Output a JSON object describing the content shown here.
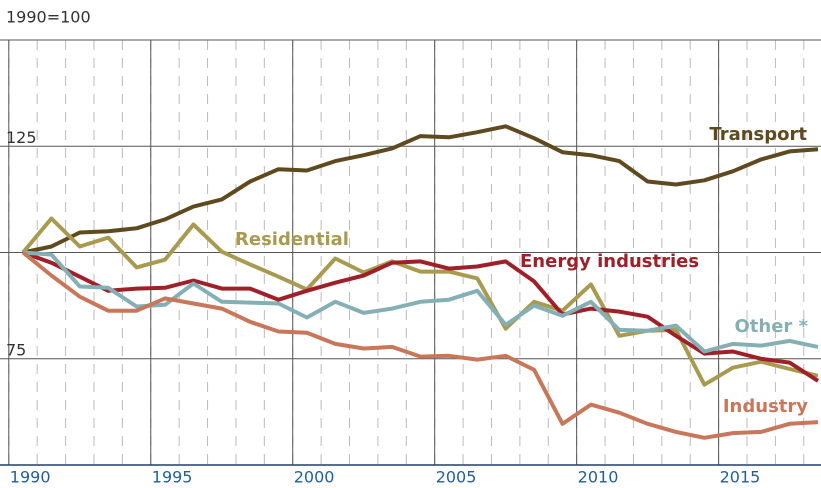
{
  "chart_data": {
    "type": "line",
    "ylabel": "1990=100",
    "x": [
      1990,
      1991,
      1992,
      1993,
      1994,
      1995,
      1996,
      1997,
      1998,
      1999,
      2000,
      2001,
      2002,
      2003,
      2004,
      2005,
      2006,
      2007,
      2008,
      2009,
      2010,
      2011,
      2012,
      2013,
      2014,
      2015,
      2016,
      2017,
      2018
    ],
    "xlim": [
      1990,
      2018
    ],
    "xticks": [
      1990,
      1995,
      2000,
      2005,
      2010,
      2015
    ],
    "ylim": [
      50,
      150
    ],
    "yticks": [
      75,
      125
    ],
    "ygrid": [
      50,
      75,
      100,
      125,
      150
    ],
    "series": [
      {
        "name": "Transport",
        "color": "#5e4a1e",
        "values": [
          100,
          101.4,
          104.7,
          105,
          105.7,
          107.8,
          110.8,
          112.5,
          116.7,
          119.6,
          119.3,
          121.5,
          122.9,
          124.5,
          127.4,
          127.1,
          128.3,
          129.7,
          126.9,
          123.6,
          122.9,
          121.5,
          116.7,
          116,
          117,
          119.1,
          121.9,
          123.8,
          124.3
        ]
      },
      {
        "name": "Residential",
        "color": "#a89b50",
        "values": [
          100,
          108,
          101.4,
          103.5,
          96.5,
          98.3,
          106.6,
          100.2,
          97.2,
          94.3,
          91.3,
          98.6,
          95.3,
          97.9,
          95.5,
          95.5,
          93.9,
          82.1,
          88.4,
          86.3,
          92.5,
          80.4,
          81.6,
          81.8,
          68.9,
          72.9,
          74.3,
          72.6,
          71
        ]
      },
      {
        "name": "Energy industries",
        "color": "#a0202a",
        "values": [
          100,
          97.6,
          94.3,
          91,
          91.5,
          91.7,
          93.4,
          91.5,
          91.5,
          88.9,
          91,
          92.9,
          94.6,
          97.6,
          97.9,
          96.2,
          96.7,
          97.9,
          93.2,
          85.4,
          86.8,
          86.1,
          84.9,
          80.4,
          76.2,
          76.7,
          75,
          74.1,
          69.8
        ]
      },
      {
        "name": "Other *",
        "color": "#84b0b5",
        "values": [
          100,
          99.5,
          92,
          91.7,
          87.3,
          87.7,
          92.7,
          88.4,
          88.2,
          88,
          84.7,
          88.4,
          85.8,
          86.8,
          88.4,
          88.9,
          91,
          83,
          87.5,
          85.1,
          88.4,
          81.8,
          81.6,
          82.8,
          76.7,
          78.5,
          78.1,
          79.2,
          77.8
        ]
      },
      {
        "name": "Industry",
        "color": "#c8775a",
        "values": [
          100,
          94.6,
          89.6,
          86.3,
          86.3,
          89.2,
          88,
          86.8,
          83.7,
          81.4,
          81.1,
          78.5,
          77.4,
          77.8,
          75.5,
          75.7,
          74.8,
          75.7,
          72.4,
          59.7,
          64.2,
          62.3,
          59.7,
          57.8,
          56.4,
          57.5,
          57.8,
          59.7,
          60.1
        ]
      }
    ]
  }
}
